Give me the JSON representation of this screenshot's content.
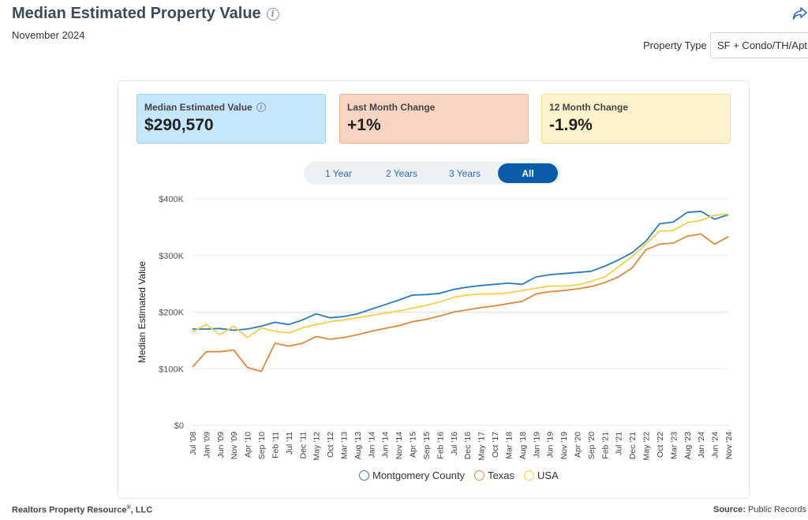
{
  "header": {
    "title": "Median Estimated Property Value",
    "subtitle": "November 2024"
  },
  "filter": {
    "label": "Property Type",
    "value": "SF + Condo/TH/Apt"
  },
  "stats": [
    {
      "label": "Median Estimated Value",
      "value": "$290,570",
      "color": "#c6e6fb"
    },
    {
      "label": "Last Month Change",
      "value": "+1%",
      "color": "#f6d4c1"
    },
    {
      "label": "12 Month Change",
      "value": "-1.9%",
      "color": "#fdf2ce"
    }
  ],
  "range_buttons": [
    {
      "label": "1 Year",
      "active": false
    },
    {
      "label": "2 Years",
      "active": false
    },
    {
      "label": "3 Years",
      "active": false
    },
    {
      "label": "All",
      "active": true
    }
  ],
  "footer": {
    "left_text": "Realtors Property Resource",
    "left_mark": "®",
    "left_suffix": ", LLC",
    "right_label": "Source:",
    "right_value": "Public Records"
  },
  "chart_data": {
    "type": "line",
    "ylabel": "Median Estimated Value",
    "ylim": [
      0,
      400000
    ],
    "yticks": [
      0,
      100000,
      200000,
      300000,
      400000
    ],
    "ytick_labels": [
      "$0",
      "$100K",
      "$200K",
      "$300K",
      "$400K"
    ],
    "x_tick_labels": [
      "Jul '08",
      "Jan '09",
      "Jun '09",
      "Nov '09",
      "Apr '10",
      "Sep '10",
      "Feb '11",
      "Jul '11",
      "Dec '11",
      "May '12",
      "Oct '12",
      "Mar '13",
      "Aug '13",
      "Jan '14",
      "Jun '14",
      "Nov '14",
      "Apr '15",
      "Sep '15",
      "Feb '16",
      "Jul '16",
      "Dec '16",
      "May '17",
      "Oct '17",
      "Mar '18",
      "Aug '18",
      "Jan '19",
      "Jun '19",
      "Nov '19",
      "Apr '20",
      "Sep '20",
      "Feb '21",
      "Jul '21",
      "Dec '21",
      "May '22",
      "Oct '22",
      "Mar '23",
      "Aug '23",
      "Jan '24",
      "Jun '24",
      "Nov '24"
    ],
    "x": [
      "2008-07",
      "2009-01",
      "2009-06",
      "2009-11",
      "2010-04",
      "2010-09",
      "2011-02",
      "2011-07",
      "2011-12",
      "2012-05",
      "2012-10",
      "2013-03",
      "2013-08",
      "2014-01",
      "2014-06",
      "2014-11",
      "2015-04",
      "2015-09",
      "2016-02",
      "2016-07",
      "2016-12",
      "2017-05",
      "2017-10",
      "2018-03",
      "2018-08",
      "2019-01",
      "2019-06",
      "2019-11",
      "2020-04",
      "2020-09",
      "2021-02",
      "2021-07",
      "2021-12",
      "2022-05",
      "2022-10",
      "2023-03",
      "2023-08",
      "2024-01",
      "2024-06",
      "2024-11"
    ],
    "legend_position": "bottom",
    "series": [
      {
        "name": "Montgomery County",
        "color": "#2b7bc0",
        "values": [
          170000,
          170000,
          171000,
          168000,
          170000,
          175000,
          182000,
          178000,
          186000,
          197000,
          190000,
          192000,
          197000,
          205000,
          213000,
          221000,
          230000,
          231000,
          233000,
          240000,
          244000,
          247000,
          249000,
          251000,
          249000,
          262000,
          266000,
          268000,
          270000,
          272000,
          281000,
          292000,
          305000,
          325000,
          356000,
          359000,
          376000,
          378000,
          364000,
          372000
        ]
      },
      {
        "name": "Texas",
        "color": "#e0883c",
        "values": [
          103000,
          130000,
          130000,
          133000,
          102000,
          95000,
          145000,
          140000,
          145000,
          157000,
          152000,
          155000,
          160000,
          166000,
          171000,
          176000,
          183000,
          187000,
          193000,
          200000,
          204000,
          208000,
          211000,
          215000,
          219000,
          232000,
          236000,
          238000,
          241000,
          245000,
          252000,
          262000,
          278000,
          310000,
          320000,
          322000,
          334000,
          338000,
          320000,
          333000
        ]
      },
      {
        "name": "USA",
        "color": "#f6cf4a",
        "values": [
          165000,
          178000,
          160000,
          175000,
          155000,
          172000,
          166000,
          163000,
          172000,
          178000,
          183000,
          186000,
          190000,
          194000,
          198000,
          202000,
          207000,
          212000,
          218000,
          226000,
          230000,
          232000,
          232000,
          234000,
          238000,
          242000,
          246000,
          246000,
          248000,
          254000,
          262000,
          280000,
          298000,
          320000,
          343000,
          344000,
          358000,
          362000,
          371000,
          373000
        ]
      }
    ]
  }
}
